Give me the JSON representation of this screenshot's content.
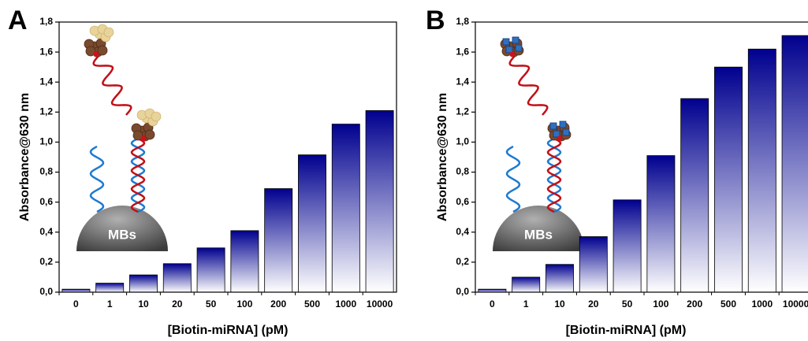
{
  "chart_data": [
    {
      "type": "bar",
      "title": "A",
      "x_label": "[Biotin-miRNA] (pM)",
      "y_label": "Absorbance@630 nm",
      "annotation": "MBs",
      "categories": [
        "0",
        "1",
        "10",
        "20",
        "50",
        "100",
        "200",
        "500",
        "1000",
        "10000"
      ],
      "values": [
        0.02,
        0.06,
        0.115,
        0.19,
        0.295,
        0.41,
        0.69,
        0.915,
        1.12,
        1.21
      ],
      "color": "#00008f",
      "ylim": [
        0,
        1.8
      ],
      "yticks": [
        {
          "value": 0,
          "label": "0,0"
        },
        {
          "value": 0.2,
          "label": "0,2"
        },
        {
          "value": 0.4,
          "label": "0,4"
        },
        {
          "value": 0.6,
          "label": "0,6"
        },
        {
          "value": 0.8,
          "label": "0,8"
        },
        {
          "value": 1.0,
          "label": "1,0"
        },
        {
          "value": 1.2,
          "label": "1,2"
        },
        {
          "value": 1.4,
          "label": "1,4"
        },
        {
          "value": 1.6,
          "label": "1,6"
        },
        {
          "value": 1.8,
          "label": "1,8"
        }
      ]
    },
    {
      "type": "bar",
      "title": "B",
      "x_label": "[Biotin-miRNA] (pM)",
      "y_label": "Absorbance@630 nm",
      "annotation": "MBs",
      "categories": [
        "0",
        "1",
        "10",
        "20",
        "50",
        "100",
        "200",
        "500",
        "1000",
        "10000"
      ],
      "values": [
        0.02,
        0.1,
        0.185,
        0.37,
        0.615,
        0.91,
        1.29,
        1.5,
        1.62,
        1.71
      ],
      "color": "#00008f",
      "ylim": [
        0,
        1.8
      ],
      "yticks": [
        {
          "value": 0,
          "label": "0,0"
        },
        {
          "value": 0.2,
          "label": "0,2"
        },
        {
          "value": 0.4,
          "label": "0,4"
        },
        {
          "value": 0.6,
          "label": "0,6"
        },
        {
          "value": 0.8,
          "label": "0,8"
        },
        {
          "value": 1.0,
          "label": "1,0"
        },
        {
          "value": 1.2,
          "label": "1,2"
        },
        {
          "value": 1.4,
          "label": "1,4"
        },
        {
          "value": 1.6,
          "label": "1,6"
        },
        {
          "value": 1.8,
          "label": "1,8"
        }
      ]
    }
  ]
}
